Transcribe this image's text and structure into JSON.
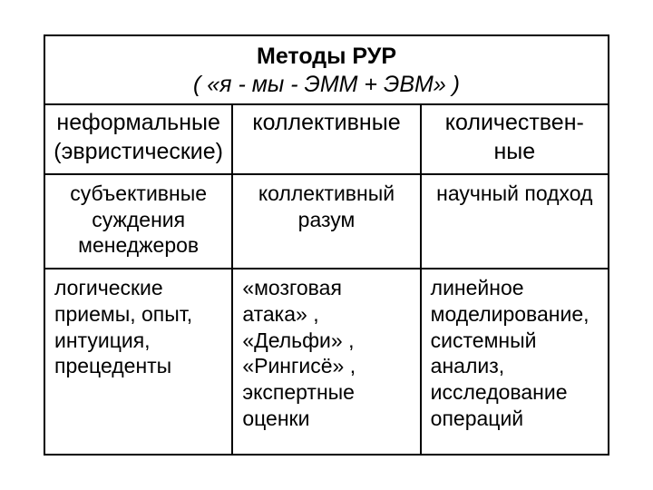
{
  "colors": {
    "border": "#000000",
    "text": "#000000",
    "background": "#ffffff"
  },
  "typography": {
    "font_family": "Arial, sans-serif",
    "title_fontsize": 25,
    "title_weight": "bold",
    "subtitle_fontsize": 25,
    "subtitle_style": "italic",
    "header_fontsize": 25,
    "body_fontsize": 23
  },
  "table": {
    "columns": 3,
    "title": "Методы РУР",
    "subtitle": "( «я - мы - ЭММ + ЭВМ» )",
    "headers": {
      "col1": "неформальные (эвристические)",
      "col2": "коллективные",
      "col3": "количествен-ные"
    },
    "row_mid": {
      "col1": "субъективные суждения менеджеров",
      "col2": "коллективный разум",
      "col3": "научный подход"
    },
    "row_body": {
      "col1": "логические приемы, опыт, интуиция, прецеденты",
      "col2": "«мозговая атака» , «Дельфи» , «Рингисё» , экспертные оценки",
      "col3": "линейное моделирование, системный анализ, исследование операций"
    }
  }
}
